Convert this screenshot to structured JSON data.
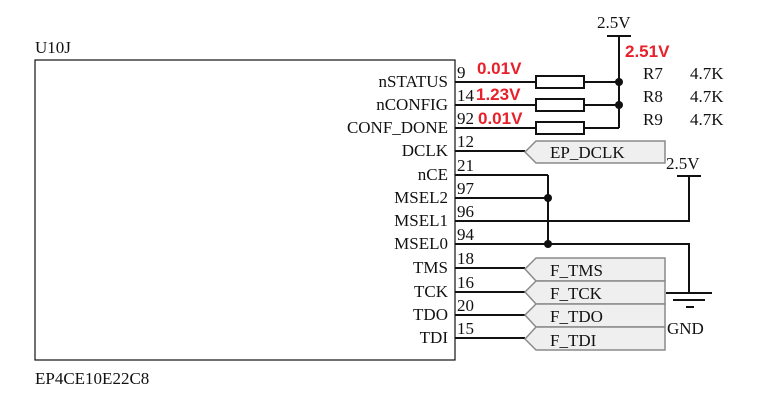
{
  "chip": {
    "ref": "U10J",
    "part": "EP4CE10E22C8"
  },
  "pins": [
    {
      "name": "nSTATUS",
      "number": "9"
    },
    {
      "name": "nCONFIG",
      "number": "14"
    },
    {
      "name": "CONF_DONE",
      "number": "92"
    },
    {
      "name": "DCLK",
      "number": "12"
    },
    {
      "name": "nCE",
      "number": "21"
    },
    {
      "name": "MSEL2",
      "number": "97"
    },
    {
      "name": "MSEL1",
      "number": "96"
    },
    {
      "name": "MSEL0",
      "number": "94"
    },
    {
      "name": "TMS",
      "number": "18"
    },
    {
      "name": "TCK",
      "number": "16"
    },
    {
      "name": "TDO",
      "number": "20"
    },
    {
      "name": "TDI",
      "number": "15"
    }
  ],
  "measurements": {
    "rail": "2.51V",
    "nstatus": "0.01V",
    "nconfig": "1.23V",
    "conf_done": "0.01V"
  },
  "resistors": [
    {
      "ref": "R7",
      "value": "4.7K"
    },
    {
      "ref": "R8",
      "value": "4.7K"
    },
    {
      "ref": "R9",
      "value": "4.7K"
    }
  ],
  "power": {
    "top": "2.5V",
    "msel": "2.5V",
    "gnd": "GND"
  },
  "ports": {
    "dclk": "EP_DCLK",
    "tms": "F_TMS",
    "tck": "F_TCK",
    "tdo": "F_TDO",
    "tdi": "F_TDI"
  },
  "colors": {
    "measurement": "#e8202a",
    "port_fill": "#efefef"
  }
}
